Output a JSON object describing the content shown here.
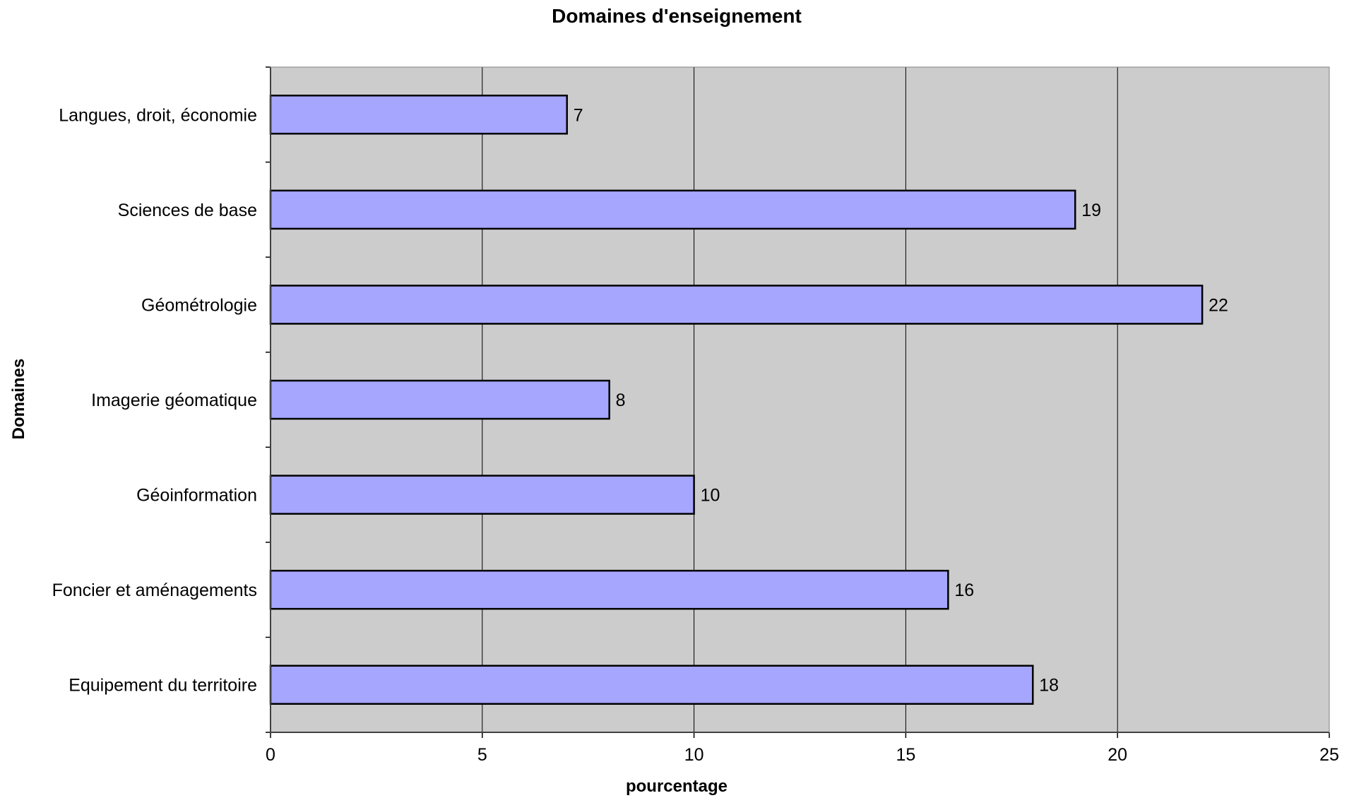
{
  "chart_data": {
    "type": "bar",
    "orientation": "horizontal",
    "title": "Domaines d'enseignement",
    "xlabel": "pourcentage",
    "ylabel": "Domaines",
    "categories": [
      "Langues, droit, économie",
      "Sciences de base",
      "Géométrologie",
      "Imagerie géomatique",
      "Géoinformation",
      "Foncier et aménagements",
      "Equipement du territoire"
    ],
    "values": [
      7,
      19,
      22,
      8,
      10,
      16,
      18
    ],
    "xlim": [
      0,
      25
    ],
    "xticks": [
      "0",
      "5",
      "10",
      "15",
      "20",
      "25"
    ],
    "grid": true,
    "legend": "none",
    "colors": {
      "bar_fill": "#A6A6FF",
      "bar_stroke": "#000000",
      "plot_background": "#CCCCCC",
      "gridline": "#000000"
    }
  }
}
